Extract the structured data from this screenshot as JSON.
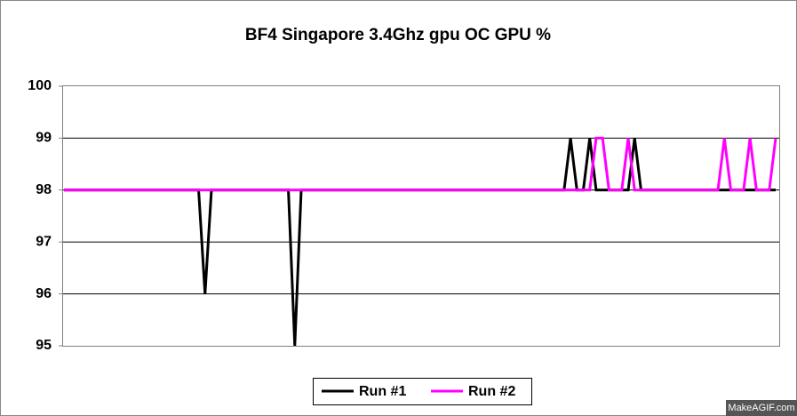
{
  "chart_data": {
    "type": "line",
    "title": "BF4 Singapore 3.4Ghz gpu OC GPU %",
    "ylim": [
      95,
      100
    ],
    "yticks": [
      95,
      96,
      97,
      98,
      99,
      100
    ],
    "grid": true,
    "legend": "bottom",
    "watermark": "MakeAGIF.com",
    "series": [
      {
        "name": "Run #1",
        "color": "#000000",
        "values": [
          98,
          98,
          98,
          98,
          98,
          98,
          98,
          98,
          98,
          98,
          98,
          98,
          98,
          98,
          98,
          98,
          98,
          98,
          98,
          98,
          98,
          98,
          96,
          98,
          98,
          98,
          98,
          98,
          98,
          98,
          98,
          98,
          98,
          98,
          98,
          98,
          95,
          98,
          98,
          98,
          98,
          98,
          98,
          98,
          98,
          98,
          98,
          98,
          98,
          98,
          98,
          98,
          98,
          98,
          98,
          98,
          98,
          98,
          98,
          98,
          98,
          98,
          98,
          98,
          98,
          98,
          98,
          98,
          98,
          98,
          98,
          98,
          98,
          98,
          98,
          98,
          98,
          98,
          98,
          99,
          98,
          98,
          99,
          98,
          98,
          98,
          98,
          98,
          98,
          99,
          98,
          98,
          98,
          98,
          98,
          98,
          98,
          98,
          98,
          98,
          98,
          98,
          98,
          98,
          98,
          98,
          98,
          98,
          98,
          98,
          98,
          98
        ]
      },
      {
        "name": "Run #2",
        "color": "#ff00ff",
        "values": [
          98,
          98,
          98,
          98,
          98,
          98,
          98,
          98,
          98,
          98,
          98,
          98,
          98,
          98,
          98,
          98,
          98,
          98,
          98,
          98,
          98,
          98,
          98,
          98,
          98,
          98,
          98,
          98,
          98,
          98,
          98,
          98,
          98,
          98,
          98,
          98,
          98,
          98,
          98,
          98,
          98,
          98,
          98,
          98,
          98,
          98,
          98,
          98,
          98,
          98,
          98,
          98,
          98,
          98,
          98,
          98,
          98,
          98,
          98,
          98,
          98,
          98,
          98,
          98,
          98,
          98,
          98,
          98,
          98,
          98,
          98,
          98,
          98,
          98,
          98,
          98,
          98,
          98,
          98,
          98,
          98,
          98,
          98,
          99,
          99,
          98,
          98,
          98,
          99,
          98,
          98,
          98,
          98,
          98,
          98,
          98,
          98,
          98,
          98,
          98,
          98,
          98,
          98,
          99,
          98,
          98,
          98,
          99,
          98,
          98,
          98,
          99
        ]
      }
    ]
  }
}
